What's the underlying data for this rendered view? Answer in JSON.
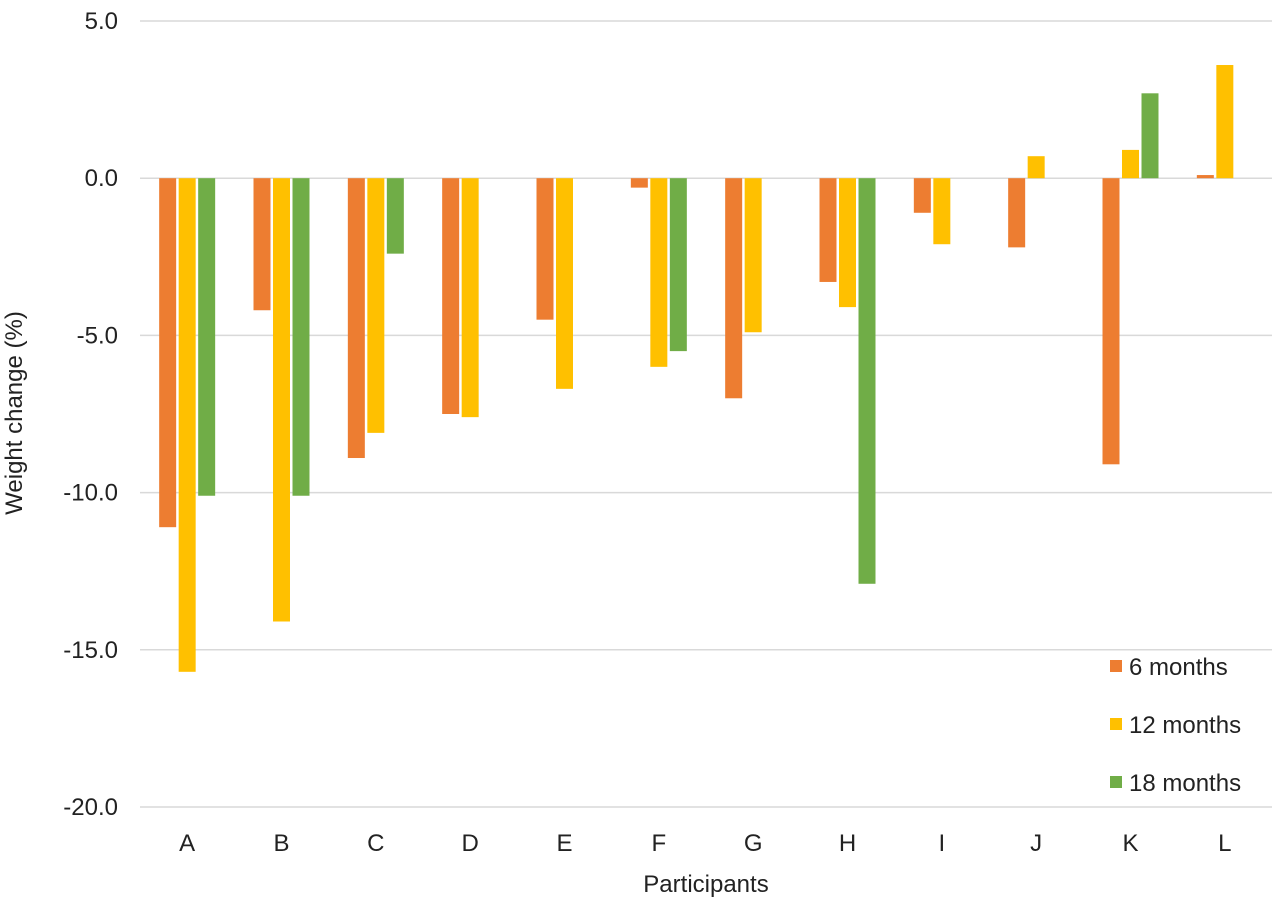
{
  "chart_data": {
    "type": "bar",
    "title": "",
    "xlabel": "Participants",
    "ylabel": "Weight change (%)",
    "ylim": [
      -20,
      5
    ],
    "yticks": [
      5,
      0,
      -5,
      -10,
      -15,
      -20
    ],
    "ytick_labels": [
      "5.0",
      "0.0",
      "-5.0",
      "-10.0",
      "-15.0",
      "-20.0"
    ],
    "grid": true,
    "legend_position": "bottom-right",
    "categories": [
      "A",
      "B",
      "C",
      "D",
      "E",
      "F",
      "G",
      "H",
      "I",
      "J",
      "K",
      "L"
    ],
    "series": [
      {
        "name": "6 months",
        "color": "#ED7D31",
        "values": [
          -11.1,
          -4.2,
          -8.9,
          -7.5,
          -4.5,
          -0.3,
          -7.0,
          -3.3,
          -1.1,
          -2.2,
          -9.1,
          0.1
        ]
      },
      {
        "name": "12 months",
        "color": "#FFC000",
        "values": [
          -15.7,
          -14.1,
          -8.1,
          -7.6,
          -6.7,
          -6.0,
          -4.9,
          -4.1,
          -2.1,
          0.7,
          0.9,
          3.6
        ]
      },
      {
        "name": "18 months",
        "color": "#70AD47",
        "values": [
          -10.1,
          -10.1,
          -2.4,
          null,
          null,
          -5.5,
          null,
          -12.9,
          null,
          null,
          2.7,
          null
        ]
      }
    ]
  }
}
